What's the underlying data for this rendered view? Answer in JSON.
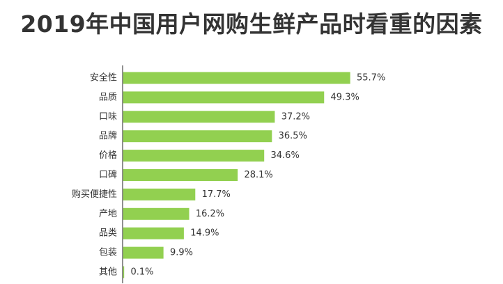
{
  "chart_data": {
    "type": "bar",
    "orientation": "horizontal",
    "title": "2019年中国用户网购生鲜产品时看重的因素",
    "categories": [
      "安全性",
      "品质",
      "口味",
      "品牌",
      "价格",
      "口碑",
      "购买便捷性",
      "产地",
      "品类",
      "包装",
      "其他"
    ],
    "values": [
      55.7,
      49.3,
      37.2,
      36.5,
      34.6,
      28.1,
      17.7,
      16.2,
      14.9,
      9.9,
      0.1
    ],
    "value_labels": [
      "55.7%",
      "49.3%",
      "37.2%",
      "36.5%",
      "34.6%",
      "28.1%",
      "17.7%",
      "16.2%",
      "14.9%",
      "9.9%",
      "0.1%"
    ],
    "xlabel": "",
    "ylabel": "",
    "xlim": [
      0,
      60
    ],
    "grid": false,
    "legend": "none",
    "bar_color": "#92d050",
    "axis_color": "#555555"
  }
}
